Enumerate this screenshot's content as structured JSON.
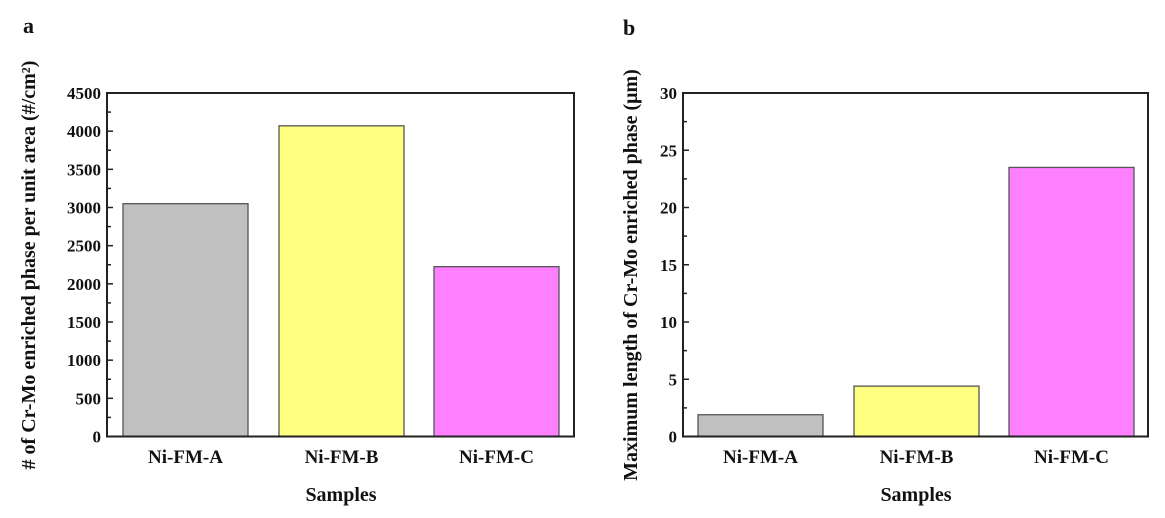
{
  "chart_data": [
    {
      "type": "bar",
      "panel_label": "a",
      "title": "",
      "xlabel": "Samples",
      "ylabel": "# of Cr-Mo enriched phase per unit area (#/cm²)",
      "categories": [
        "Ni-FM-A",
        "Ni-FM-B",
        "Ni-FM-C"
      ],
      "values": [
        3050,
        4070,
        2225
      ],
      "colors": [
        "#c0c0c0",
        "#ffff80",
        "#ff80ff"
      ],
      "ylim": [
        0,
        4500
      ],
      "yticks": [
        0,
        500,
        1000,
        1500,
        2000,
        2500,
        3000,
        3500,
        4000,
        4500
      ],
      "ytick_labels": [
        "0",
        "500",
        "1000",
        "1500",
        "2000",
        "2500",
        "3000",
        "3500",
        "4000",
        "4500"
      ],
      "minor_step": 250,
      "grid": false,
      "legend": "none"
    },
    {
      "type": "bar",
      "panel_label": "b",
      "title": "",
      "xlabel": "Samples",
      "ylabel": "Maximum length of Cr-Mo enriched phase (μm)",
      "categories": [
        "Ni-FM-A",
        "Ni-FM-B",
        "Ni-FM-C"
      ],
      "values": [
        1.9,
        4.4,
        23.5
      ],
      "colors": [
        "#c0c0c0",
        "#ffff80",
        "#ff80ff"
      ],
      "ylim": [
        0,
        30
      ],
      "yticks": [
        0,
        5,
        10,
        15,
        20,
        25,
        30
      ],
      "ytick_labels": [
        "0",
        "5",
        "10",
        "15",
        "20",
        "25",
        "30"
      ],
      "minor_step": 2.5,
      "grid": false,
      "legend": "none"
    }
  ]
}
